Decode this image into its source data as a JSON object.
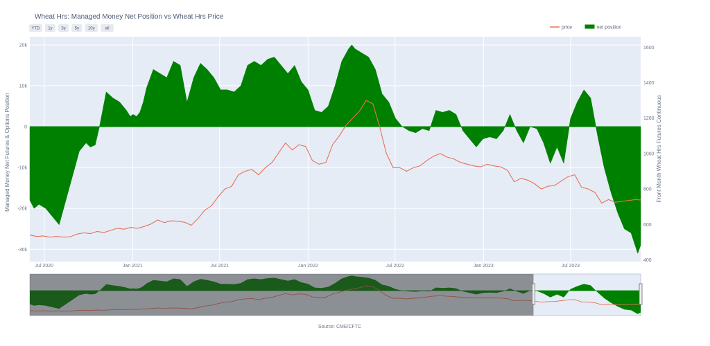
{
  "chart_data": {
    "type": "area",
    "title": "Wheat Hrs: Managed Money Net Position vs Wheat Hrs Price",
    "range_buttons": [
      "YTD",
      "1y",
      "3y",
      "5y",
      "10y",
      "all"
    ],
    "legend": {
      "placement": "top-right",
      "entries": [
        {
          "name": "price",
          "color": "#e8705a"
        },
        {
          "name": "net position",
          "color": "#008000"
        }
      ]
    },
    "source": "Source: CME/CFTC",
    "y_left": {
      "label": "Managed Money Net Futures & Options Position",
      "range": [
        -33000,
        22000
      ],
      "ticks": [
        20000,
        10000,
        0,
        -10000,
        -20000,
        -30000
      ],
      "tick_labels": [
        "20k",
        "10k",
        "0",
        "-10k",
        "-20k",
        "-30k"
      ]
    },
    "y_right": {
      "label": "Front Month Wheat Hrs Futures Continuous",
      "range": [
        390,
        1660
      ],
      "ticks": [
        1600,
        1400,
        1200,
        1000,
        800,
        600,
        400
      ],
      "tick_labels": [
        "1600",
        "1400",
        "1200",
        "1000",
        "800",
        "600",
        "400"
      ]
    },
    "x_axis": {
      "range": [
        "2020-06-01",
        "2023-11-24"
      ],
      "ticks": [
        "2020-07-01",
        "2021-01-01",
        "2021-07-01",
        "2022-01-01",
        "2022-07-01",
        "2023-01-01",
        "2023-07-01"
      ],
      "tick_labels": [
        "Jul 2020",
        "Jan 2021",
        "Jul 2021",
        "Jan 2022",
        "Jul 2022",
        "Jan 2023",
        "Jul 2023"
      ]
    },
    "grid": true,
    "series": [
      {
        "name": "net position",
        "type": "area",
        "axis": "left",
        "color": "#008000",
        "points": [
          [
            "2020-06-01",
            -18000
          ],
          [
            "2020-06-10",
            -20000
          ],
          [
            "2020-06-20",
            -19000
          ],
          [
            "2020-07-04",
            -20000
          ],
          [
            "2020-07-18",
            -22000
          ],
          [
            "2020-08-01",
            -24000
          ],
          [
            "2020-08-15",
            -18000
          ],
          [
            "2020-08-29",
            -12000
          ],
          [
            "2020-09-12",
            -6000
          ],
          [
            "2020-09-26",
            -4000
          ],
          [
            "2020-10-05",
            -5000
          ],
          [
            "2020-10-15",
            -4500
          ],
          [
            "2020-10-24",
            0
          ],
          [
            "2020-11-07",
            8500
          ],
          [
            "2020-11-21",
            7000
          ],
          [
            "2020-12-05",
            6000
          ],
          [
            "2020-12-19",
            4000
          ],
          [
            "2020-12-27",
            2500
          ],
          [
            "2021-01-02",
            3000
          ],
          [
            "2021-01-09",
            2500
          ],
          [
            "2021-01-16",
            3500
          ],
          [
            "2021-01-23",
            6000
          ],
          [
            "2021-01-30",
            9500
          ],
          [
            "2021-02-13",
            14000
          ],
          [
            "2021-02-27",
            13000
          ],
          [
            "2021-03-13",
            12000
          ],
          [
            "2021-03-27",
            16000
          ],
          [
            "2021-04-10",
            15000
          ],
          [
            "2021-04-24",
            6000
          ],
          [
            "2021-05-08",
            12000
          ],
          [
            "2021-05-22",
            15500
          ],
          [
            "2021-06-05",
            14000
          ],
          [
            "2021-06-19",
            12000
          ],
          [
            "2021-07-03",
            9000
          ],
          [
            "2021-07-17",
            9000
          ],
          [
            "2021-07-31",
            8500
          ],
          [
            "2021-08-14",
            10000
          ],
          [
            "2021-08-28",
            15000
          ],
          [
            "2021-09-11",
            16000
          ],
          [
            "2021-09-25",
            15000
          ],
          [
            "2021-10-09",
            16500
          ],
          [
            "2021-10-23",
            17000
          ],
          [
            "2021-11-06",
            15000
          ],
          [
            "2021-11-20",
            13000
          ],
          [
            "2021-12-04",
            15000
          ],
          [
            "2021-12-18",
            11000
          ],
          [
            "2022-01-01",
            9000
          ],
          [
            "2022-01-15",
            4000
          ],
          [
            "2022-01-29",
            3500
          ],
          [
            "2022-02-12",
            5000
          ],
          [
            "2022-02-26",
            10000
          ],
          [
            "2022-03-12",
            16000
          ],
          [
            "2022-03-26",
            19000
          ],
          [
            "2022-04-02",
            20000
          ],
          [
            "2022-04-09",
            19000
          ],
          [
            "2022-04-23",
            18000
          ],
          [
            "2022-05-07",
            17000
          ],
          [
            "2022-05-21",
            14000
          ],
          [
            "2022-06-04",
            8000
          ],
          [
            "2022-06-18",
            6000
          ],
          [
            "2022-07-02",
            2000
          ],
          [
            "2022-07-16",
            0
          ],
          [
            "2022-07-30",
            -1000
          ],
          [
            "2022-08-13",
            -1500
          ],
          [
            "2022-08-27",
            -500
          ],
          [
            "2022-09-10",
            -1000
          ],
          [
            "2022-09-24",
            4000
          ],
          [
            "2022-10-08",
            3500
          ],
          [
            "2022-10-22",
            4000
          ],
          [
            "2022-11-05",
            3000
          ],
          [
            "2022-11-19",
            -1000
          ],
          [
            "2022-12-03",
            -3000
          ],
          [
            "2022-12-17",
            -5000
          ],
          [
            "2022-12-31",
            -3000
          ],
          [
            "2023-01-14",
            -2500
          ],
          [
            "2023-01-28",
            -3000
          ],
          [
            "2023-02-11",
            -1000
          ],
          [
            "2023-02-25",
            3000
          ],
          [
            "2023-03-11",
            -1000
          ],
          [
            "2023-03-25",
            -4000
          ],
          [
            "2023-04-08",
            0
          ],
          [
            "2023-04-22",
            -500
          ],
          [
            "2023-05-06",
            -4000
          ],
          [
            "2023-05-20",
            -9000
          ],
          [
            "2023-06-03",
            -5000
          ],
          [
            "2023-06-17",
            -9000
          ],
          [
            "2023-07-01",
            2000
          ],
          [
            "2023-07-15",
            6000
          ],
          [
            "2023-07-29",
            9000
          ],
          [
            "2023-08-12",
            7000
          ],
          [
            "2023-08-26",
            -2000
          ],
          [
            "2023-09-09",
            -10000
          ],
          [
            "2023-09-23",
            -16000
          ],
          [
            "2023-10-07",
            -21000
          ],
          [
            "2023-10-21",
            -25000
          ],
          [
            "2023-11-04",
            -26000
          ],
          [
            "2023-11-18",
            -31000
          ],
          [
            "2023-11-24",
            -29000
          ]
        ]
      },
      {
        "name": "price",
        "type": "line",
        "axis": "right",
        "color": "#e8705a",
        "points": [
          [
            "2020-06-01",
            540
          ],
          [
            "2020-06-15",
            532
          ],
          [
            "2020-06-29",
            535
          ],
          [
            "2020-07-13",
            528
          ],
          [
            "2020-07-27",
            532
          ],
          [
            "2020-08-10",
            528
          ],
          [
            "2020-08-24",
            530
          ],
          [
            "2020-09-07",
            545
          ],
          [
            "2020-09-21",
            552
          ],
          [
            "2020-10-05",
            548
          ],
          [
            "2020-10-19",
            560
          ],
          [
            "2020-11-02",
            554
          ],
          [
            "2020-11-16",
            566
          ],
          [
            "2020-11-30",
            578
          ],
          [
            "2020-12-14",
            573
          ],
          [
            "2020-12-28",
            583
          ],
          [
            "2021-01-11",
            578
          ],
          [
            "2021-01-25",
            588
          ],
          [
            "2021-02-08",
            602
          ],
          [
            "2021-02-22",
            625
          ],
          [
            "2021-03-08",
            610
          ],
          [
            "2021-03-22",
            620
          ],
          [
            "2021-04-05",
            618
          ],
          [
            "2021-04-19",
            612
          ],
          [
            "2021-05-03",
            595
          ],
          [
            "2021-05-17",
            633
          ],
          [
            "2021-05-31",
            680
          ],
          [
            "2021-06-14",
            705
          ],
          [
            "2021-06-28",
            757
          ],
          [
            "2021-07-12",
            800
          ],
          [
            "2021-07-26",
            815
          ],
          [
            "2021-08-09",
            880
          ],
          [
            "2021-08-23",
            900
          ],
          [
            "2021-09-06",
            910
          ],
          [
            "2021-09-20",
            880
          ],
          [
            "2021-10-04",
            920
          ],
          [
            "2021-10-18",
            950
          ],
          [
            "2021-11-01",
            1005
          ],
          [
            "2021-11-15",
            1060
          ],
          [
            "2021-11-29",
            1020
          ],
          [
            "2021-12-13",
            1050
          ],
          [
            "2021-12-27",
            1040
          ],
          [
            "2022-01-10",
            960
          ],
          [
            "2022-01-24",
            940
          ],
          [
            "2022-02-07",
            950
          ],
          [
            "2022-02-21",
            1050
          ],
          [
            "2022-03-07",
            1100
          ],
          [
            "2022-03-21",
            1160
          ],
          [
            "2022-04-04",
            1200
          ],
          [
            "2022-04-18",
            1240
          ],
          [
            "2022-05-02",
            1300
          ],
          [
            "2022-05-16",
            1280
          ],
          [
            "2022-05-30",
            1150
          ],
          [
            "2022-06-13",
            1000
          ],
          [
            "2022-06-27",
            920
          ],
          [
            "2022-07-11",
            920
          ],
          [
            "2022-07-25",
            900
          ],
          [
            "2022-08-08",
            920
          ],
          [
            "2022-08-22",
            930
          ],
          [
            "2022-09-05",
            960
          ],
          [
            "2022-09-19",
            985
          ],
          [
            "2022-10-03",
            1000
          ],
          [
            "2022-10-17",
            980
          ],
          [
            "2022-10-31",
            970
          ],
          [
            "2022-11-14",
            950
          ],
          [
            "2022-11-28",
            940
          ],
          [
            "2022-12-12",
            930
          ],
          [
            "2022-12-26",
            925
          ],
          [
            "2023-01-09",
            940
          ],
          [
            "2023-01-23",
            930
          ],
          [
            "2023-02-06",
            925
          ],
          [
            "2023-02-20",
            905
          ],
          [
            "2023-03-06",
            840
          ],
          [
            "2023-03-20",
            860
          ],
          [
            "2023-04-03",
            850
          ],
          [
            "2023-04-17",
            830
          ],
          [
            "2023-05-01",
            800
          ],
          [
            "2023-05-15",
            815
          ],
          [
            "2023-05-29",
            820
          ],
          [
            "2023-06-12",
            845
          ],
          [
            "2023-06-26",
            870
          ],
          [
            "2023-07-10",
            880
          ],
          [
            "2023-07-24",
            810
          ],
          [
            "2023-08-07",
            800
          ],
          [
            "2023-08-21",
            780
          ],
          [
            "2023-09-04",
            720
          ],
          [
            "2023-09-18",
            740
          ],
          [
            "2023-10-02",
            725
          ],
          [
            "2023-10-16",
            730
          ],
          [
            "2023-10-30",
            735
          ],
          [
            "2023-11-13",
            740
          ],
          [
            "2023-11-24",
            738
          ]
        ]
      }
    ],
    "range_selector": {
      "selected": [
        "2023-04-15",
        "2023-11-24"
      ]
    }
  }
}
